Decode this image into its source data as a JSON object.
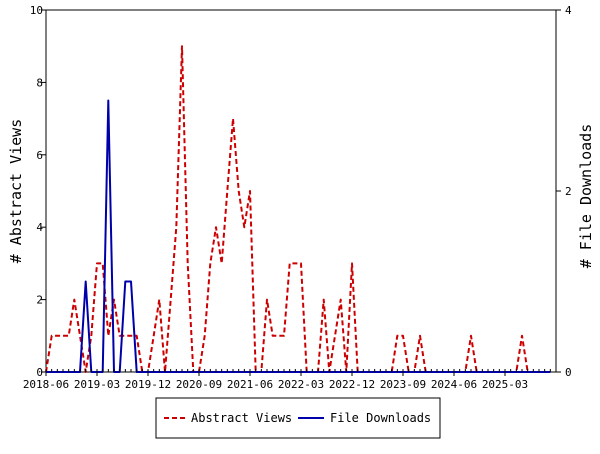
{
  "chart_data": {
    "type": "line",
    "title": "",
    "xlabel": "",
    "ylabel_left": "# Abstract Views",
    "ylabel_right": "# File Downloads",
    "ylim_left": [
      0,
      10
    ],
    "ylim_right": [
      0,
      4
    ],
    "yticks_left": [
      "0",
      "2",
      "4",
      "6",
      "8",
      "10"
    ],
    "yticks_right": [
      "0",
      "2",
      "4"
    ],
    "x_start": "2018-06",
    "x_end": "2025-12",
    "xtick_labels": [
      "2018-06",
      "2019-03",
      "2019-12",
      "2020-09",
      "2021-06",
      "2022-03",
      "2022-12",
      "2023-09",
      "2024-06",
      "2025-03"
    ],
    "grid": false,
    "legend_position": "bottom-center",
    "series": [
      {
        "name": "Abstract Views",
        "axis": "left",
        "color": "#cc0000",
        "dash": "dashed",
        "x": [
          "2018-06",
          "2018-07",
          "2018-08",
          "2018-09",
          "2018-10",
          "2018-11",
          "2018-12",
          "2019-01",
          "2019-02",
          "2019-03",
          "2019-04",
          "2019-05",
          "2019-06",
          "2019-07",
          "2019-08",
          "2019-09",
          "2019-10",
          "2019-11",
          "2019-12",
          "2020-01",
          "2020-02",
          "2020-03",
          "2020-04",
          "2020-05",
          "2020-06",
          "2020-07",
          "2020-08",
          "2020-09",
          "2020-10",
          "2020-11",
          "2020-12",
          "2021-01",
          "2021-02",
          "2021-03",
          "2021-04",
          "2021-05",
          "2021-06",
          "2021-07",
          "2021-08",
          "2021-09",
          "2021-10",
          "2021-11",
          "2021-12",
          "2022-01",
          "2022-02",
          "2022-03",
          "2022-04",
          "2022-05",
          "2022-06",
          "2022-07",
          "2022-08",
          "2022-09",
          "2022-10",
          "2022-11",
          "2022-12",
          "2023-01",
          "2023-02",
          "2023-03",
          "2023-04",
          "2023-05",
          "2023-06",
          "2023-07",
          "2023-08",
          "2023-09",
          "2023-10",
          "2023-11",
          "2023-12",
          "2024-01",
          "2024-02",
          "2024-03",
          "2024-04",
          "2024-05",
          "2024-06",
          "2024-07",
          "2024-08",
          "2024-09",
          "2024-10",
          "2024-11",
          "2024-12",
          "2025-01",
          "2025-02",
          "2025-03",
          "2025-04",
          "2025-05",
          "2025-06",
          "2025-07",
          "2025-08",
          "2025-09",
          "2025-10",
          "2025-11"
        ],
        "values": [
          0,
          1,
          1,
          1,
          1,
          2,
          1,
          0,
          1,
          3,
          3,
          1,
          2,
          1,
          1,
          1,
          1,
          0,
          0,
          1,
          2,
          0,
          2,
          4,
          9,
          3,
          0,
          0,
          1,
          3,
          4,
          3,
          5,
          7,
          5,
          4,
          5,
          0,
          0,
          2,
          1,
          1,
          1,
          3,
          3,
          3,
          0,
          0,
          0,
          2,
          0,
          1,
          2,
          0,
          3,
          0,
          0,
          0,
          0,
          0,
          0,
          0,
          1,
          1,
          0,
          0,
          1,
          0,
          0,
          0,
          0,
          0,
          0,
          0,
          0,
          1,
          0,
          0,
          0,
          0,
          0,
          0,
          0,
          0,
          1,
          0,
          0,
          0,
          0,
          0
        ],
        "count": 90
      },
      {
        "name": "File Downloads",
        "axis": "right",
        "color": "#0000aa",
        "dash": "solid",
        "x": [
          "2018-06",
          "2018-07",
          "2018-08",
          "2018-09",
          "2018-10",
          "2018-11",
          "2018-12",
          "2019-01",
          "2019-02",
          "2019-03",
          "2019-04",
          "2019-05",
          "2019-06",
          "2019-07",
          "2019-08",
          "2019-09",
          "2019-10",
          "2019-11",
          "2019-12",
          "2020-01",
          "2020-02",
          "2020-03",
          "2020-04",
          "2020-05",
          "2020-06",
          "2020-07",
          "2020-08",
          "2020-09",
          "2020-10",
          "2020-11",
          "2020-12",
          "2021-01",
          "2021-02",
          "2021-03",
          "2021-04",
          "2021-05",
          "2021-06",
          "2021-07",
          "2021-08",
          "2021-09",
          "2021-10",
          "2021-11",
          "2021-12",
          "2022-01",
          "2022-02",
          "2022-03",
          "2022-04",
          "2022-05",
          "2022-06",
          "2022-07",
          "2022-08",
          "2022-09",
          "2022-10",
          "2022-11",
          "2022-12",
          "2023-01",
          "2023-02",
          "2023-03",
          "2023-04",
          "2023-05",
          "2023-06",
          "2023-07",
          "2023-08",
          "2023-09",
          "2023-10",
          "2023-11",
          "2023-12",
          "2024-01",
          "2024-02",
          "2024-03",
          "2024-04",
          "2024-05",
          "2024-06",
          "2024-07",
          "2024-08",
          "2024-09",
          "2024-10",
          "2024-11",
          "2024-12",
          "2025-01",
          "2025-02",
          "2025-03",
          "2025-04",
          "2025-05",
          "2025-06",
          "2025-07",
          "2025-08",
          "2025-09",
          "2025-10",
          "2025-11"
        ],
        "values": [
          0,
          0,
          0,
          0,
          0,
          0,
          0,
          1,
          0,
          0,
          0,
          3,
          0,
          0,
          1,
          1,
          0,
          0,
          0,
          0,
          0,
          0,
          0,
          0,
          0,
          0,
          0,
          0,
          0,
          0,
          0,
          0,
          0,
          0,
          0,
          0,
          0,
          0,
          0,
          0,
          0,
          0,
          0,
          0,
          0,
          0,
          0,
          0,
          0,
          0,
          0,
          0,
          0,
          0,
          0,
          0,
          0,
          0,
          0,
          0,
          0,
          0,
          0,
          0,
          0,
          0,
          0,
          0,
          0,
          0,
          0,
          0,
          0,
          0,
          0,
          0,
          0,
          0,
          0,
          0,
          0,
          0,
          0,
          0,
          0,
          0,
          0,
          0,
          0,
          0
        ]
      }
    ]
  }
}
